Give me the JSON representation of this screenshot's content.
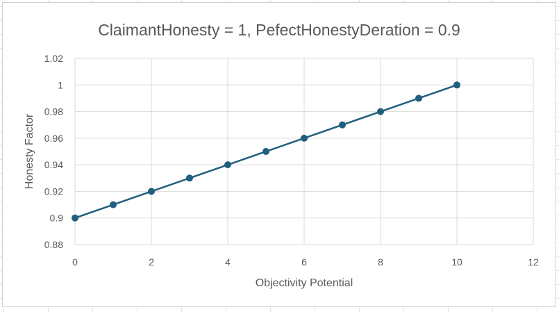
{
  "chart_data": {
    "type": "scatter",
    "title": "ClaimantHonesty = 1, PefectHonestyDeration = 0.9",
    "xlabel": "Objectivity Potential",
    "ylabel": "Honesty Factor",
    "xlim": [
      0,
      12
    ],
    "ylim": [
      0.88,
      1.02
    ],
    "xticks": [
      "0",
      "2",
      "4",
      "6",
      "8",
      "10",
      "12"
    ],
    "yticks": [
      "0.88",
      "0.9",
      "0.92",
      "0.94",
      "0.96",
      "0.98",
      "1",
      "1.02"
    ],
    "grid": true,
    "legend": "none",
    "series": [
      {
        "color": "#1f5f7d",
        "x": [
          0,
          1,
          2,
          3,
          4,
          5,
          6,
          7,
          8,
          9,
          10
        ],
        "y": [
          0.9,
          0.91,
          0.92,
          0.93,
          0.94,
          0.95,
          0.96,
          0.97,
          0.98,
          0.99,
          1.0
        ]
      }
    ]
  }
}
